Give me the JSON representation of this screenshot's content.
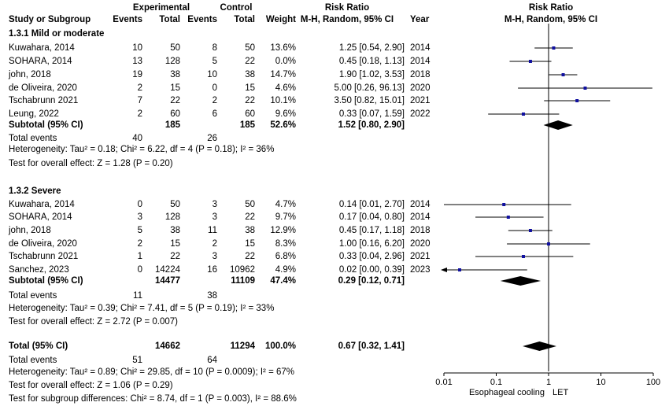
{
  "headers": {
    "experimental": "Experimental",
    "control": "Control",
    "risk_ratio": "Risk Ratio",
    "risk_ratio_plot": "Risk Ratio",
    "study": "Study or Subgroup",
    "events_e": "Events",
    "total_e": "Total",
    "events_c": "Events",
    "total_c": "Total",
    "weight": "Weight",
    "method": "M-H, Random, 95% CI",
    "year": "Year",
    "method_plot": "M-H, Random, 95% CI"
  },
  "subgroups": [
    {
      "title": "1.3.1 Mild or moderate",
      "studies": [
        {
          "study": "Kuwahara, 2014",
          "ee": "10",
          "te": "50",
          "ec": "8",
          "tc": "50",
          "weight": "13.6%",
          "ci": "1.25 [0.54, 2.90]",
          "year": "2014"
        },
        {
          "study": "SOHARA, 2014",
          "ee": "13",
          "te": "128",
          "ec": "5",
          "tc": "22",
          "weight": "0.0%",
          "ci": "0.45 [0.18, 1.13]",
          "year": "2014"
        },
        {
          "study": "john, 2018",
          "ee": "19",
          "te": "38",
          "ec": "10",
          "tc": "38",
          "weight": "14.7%",
          "ci": "1.90 [1.02, 3.53]",
          "year": "2018"
        },
        {
          "study": "de Oliveira, 2020",
          "ee": "2",
          "te": "15",
          "ec": "0",
          "tc": "15",
          "weight": "4.6%",
          "ci": "5.00 [0.26, 96.13]",
          "year": "2020"
        },
        {
          "study": "Tschabrunn 2021",
          "ee": "7",
          "te": "22",
          "ec": "2",
          "tc": "22",
          "weight": "10.1%",
          "ci": "3.50 [0.82, 15.01]",
          "year": "2021"
        },
        {
          "study": "Leung, 2022",
          "ee": "2",
          "te": "60",
          "ec": "6",
          "tc": "60",
          "weight": "9.6%",
          "ci": "0.33 [0.07, 1.59]",
          "year": "2022"
        }
      ],
      "subtotal": {
        "label": "Subtotal (95% CI)",
        "te": "185",
        "tc": "185",
        "weight": "52.6%",
        "ci": "1.52 [0.80, 2.90]"
      },
      "total_events": {
        "label": "Total events",
        "ee": "40",
        "ec": "26"
      },
      "heterogeneity": "Heterogeneity: Tau² = 0.18; Chi² = 6.22, df = 4 (P = 0.18); I² = 36%",
      "overall": "Test for overall effect: Z = 1.28 (P = 0.20)"
    },
    {
      "title": "1.3.2 Severe",
      "studies": [
        {
          "study": "Kuwahara, 2014",
          "ee": "0",
          "te": "50",
          "ec": "3",
          "tc": "50",
          "weight": "4.7%",
          "ci": "0.14 [0.01, 2.70]",
          "year": "2014"
        },
        {
          "study": "SOHARA, 2014",
          "ee": "3",
          "te": "128",
          "ec": "3",
          "tc": "22",
          "weight": "9.7%",
          "ci": "0.17 [0.04, 0.80]",
          "year": "2014"
        },
        {
          "study": "john, 2018",
          "ee": "5",
          "te": "38",
          "ec": "11",
          "tc": "38",
          "weight": "12.9%",
          "ci": "0.45 [0.17, 1.18]",
          "year": "2018"
        },
        {
          "study": "de Oliveira, 2020",
          "ee": "2",
          "te": "15",
          "ec": "2",
          "tc": "15",
          "weight": "8.3%",
          "ci": "1.00 [0.16, 6.20]",
          "year": "2020"
        },
        {
          "study": "Tschabrunn 2021",
          "ee": "1",
          "te": "22",
          "ec": "3",
          "tc": "22",
          "weight": "6.8%",
          "ci": "0.33 [0.04, 2.96]",
          "year": "2021"
        },
        {
          "study": "Sanchez, 2023",
          "ee": "0",
          "te": "14224",
          "ec": "16",
          "tc": "10962",
          "weight": "4.9%",
          "ci": "0.02 [0.00, 0.39]",
          "year": "2023"
        }
      ],
      "subtotal": {
        "label": "Subtotal (95% CI)",
        "te": "14477",
        "tc": "11109",
        "weight": "47.4%",
        "ci": "0.29 [0.12, 0.71]"
      },
      "total_events": {
        "label": "Total events",
        "ee": "11",
        "ec": "38"
      },
      "heterogeneity": "Heterogeneity: Tau² = 0.39; Chi² = 7.41, df = 5 (P = 0.19); I² = 33%",
      "overall": "Test for overall effect: Z = 2.72 (P = 0.007)"
    }
  ],
  "total": {
    "label": "Total (95% CI)",
    "te": "14662",
    "tc": "11294",
    "weight": "100.0%",
    "ci": "0.67 [0.32, 1.41]"
  },
  "total_events": {
    "label": "Total events",
    "ee": "51",
    "ec": "64"
  },
  "heterogeneity": "Heterogeneity: Tau² = 0.89; Chi² = 29.85, df = 10 (P = 0.0009); I² = 67%",
  "overall": "Test for overall effect: Z = 1.06 (P = 0.29)",
  "subgroup_diff": "Test for subgroup differences: Chi² = 8.74, df = 1 (P = 0.003), I² = 88.6%",
  "colors": {
    "marker": "#1010a0",
    "diamond": "#000000",
    "text": "#000000"
  },
  "chart_data": {
    "type": "forest",
    "x_scale": "log",
    "xlim": [
      0.01,
      100
    ],
    "ticks": [
      "0.01",
      "0.1",
      "1",
      "10",
      "100"
    ],
    "tick_values": [
      0.01,
      0.1,
      1,
      10,
      100
    ],
    "xlabel_left": "Esophageal cooling",
    "xlabel_right": "LET",
    "studies": [
      {
        "group": "1.3.1 Mild or moderate",
        "study": "Kuwahara, 2014",
        "rr": 1.25,
        "lo": 0.54,
        "hi": 2.9
      },
      {
        "group": "1.3.1 Mild or moderate",
        "study": "SOHARA, 2014",
        "rr": 0.45,
        "lo": 0.18,
        "hi": 1.13
      },
      {
        "group": "1.3.1 Mild or moderate",
        "study": "john, 2018",
        "rr": 1.9,
        "lo": 1.02,
        "hi": 3.53
      },
      {
        "group": "1.3.1 Mild or moderate",
        "study": "de Oliveira, 2020",
        "rr": 5.0,
        "lo": 0.26,
        "hi": 96.13
      },
      {
        "group": "1.3.1 Mild or moderate",
        "study": "Tschabrunn 2021",
        "rr": 3.5,
        "lo": 0.82,
        "hi": 15.01
      },
      {
        "group": "1.3.1 Mild or moderate",
        "study": "Leung, 2022",
        "rr": 0.33,
        "lo": 0.07,
        "hi": 1.59
      },
      {
        "group": "1.3.2 Severe",
        "study": "Kuwahara, 2014",
        "rr": 0.14,
        "lo": 0.01,
        "hi": 2.7
      },
      {
        "group": "1.3.2 Severe",
        "study": "SOHARA, 2014",
        "rr": 0.17,
        "lo": 0.04,
        "hi": 0.8
      },
      {
        "group": "1.3.2 Severe",
        "study": "john, 2018",
        "rr": 0.45,
        "lo": 0.17,
        "hi": 1.18
      },
      {
        "group": "1.3.2 Severe",
        "study": "de Oliveira, 2020",
        "rr": 1.0,
        "lo": 0.16,
        "hi": 6.2
      },
      {
        "group": "1.3.2 Severe",
        "study": "Tschabrunn 2021",
        "rr": 0.33,
        "lo": 0.04,
        "hi": 2.96
      },
      {
        "group": "1.3.2 Severe",
        "study": "Sanchez, 2023",
        "rr": 0.02,
        "lo": 0.0,
        "hi": 0.39
      }
    ],
    "subtotals": [
      {
        "group": "1.3.1 Mild or moderate",
        "rr": 1.52,
        "lo": 0.8,
        "hi": 2.9
      },
      {
        "group": "1.3.2 Severe",
        "rr": 0.29,
        "lo": 0.12,
        "hi": 0.71
      }
    ],
    "overall": {
      "rr": 0.67,
      "lo": 0.32,
      "hi": 1.41
    }
  }
}
